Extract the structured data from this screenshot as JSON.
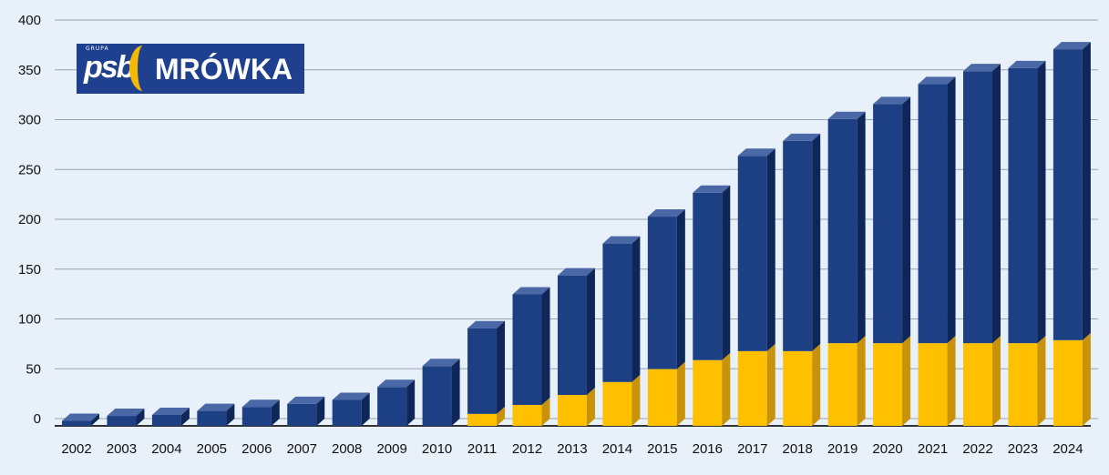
{
  "colors": {
    "background": "#e8f0fa",
    "blue": "#1d4085",
    "blue_top": "#4a67a6",
    "blue_side": "#0f2758",
    "yellow": "#ffc000",
    "yellow_side": "#c8930a",
    "grid": "#9aa3b5",
    "axis": "#333333"
  },
  "logo": {
    "small_text": "GRUPA",
    "psb": "psb",
    "brand": "MRÓWKA"
  },
  "chart_data": {
    "type": "bar",
    "stacked": true,
    "grid": true,
    "categories": [
      "2002",
      "2003",
      "2004",
      "2005",
      "2006",
      "2007",
      "2008",
      "2009",
      "2010",
      "2011",
      "2012",
      "2013",
      "2014",
      "2015",
      "2016",
      "2017",
      "2018",
      "2019",
      "2020",
      "2021",
      "2022",
      "2023",
      "2024"
    ],
    "series": [
      {
        "color": "#ffc000",
        "values": [
          0,
          0,
          0,
          0,
          0,
          0,
          0,
          0,
          0,
          12,
          21,
          31,
          44,
          57,
          66,
          75,
          75,
          83,
          83,
          83,
          83,
          83,
          86
        ]
      },
      {
        "color": "#1d4085",
        "values": [
          5,
          10,
          11,
          15,
          19,
          22,
          26,
          39,
          60,
          86,
          111,
          120,
          139,
          153,
          168,
          196,
          211,
          225,
          240,
          260,
          273,
          276,
          292
        ]
      }
    ],
    "ylim": [
      0,
      400
    ],
    "yticks": [
      0,
      50,
      100,
      150,
      200,
      250,
      300,
      350,
      400
    ],
    "xlabel": "",
    "ylabel": ""
  }
}
